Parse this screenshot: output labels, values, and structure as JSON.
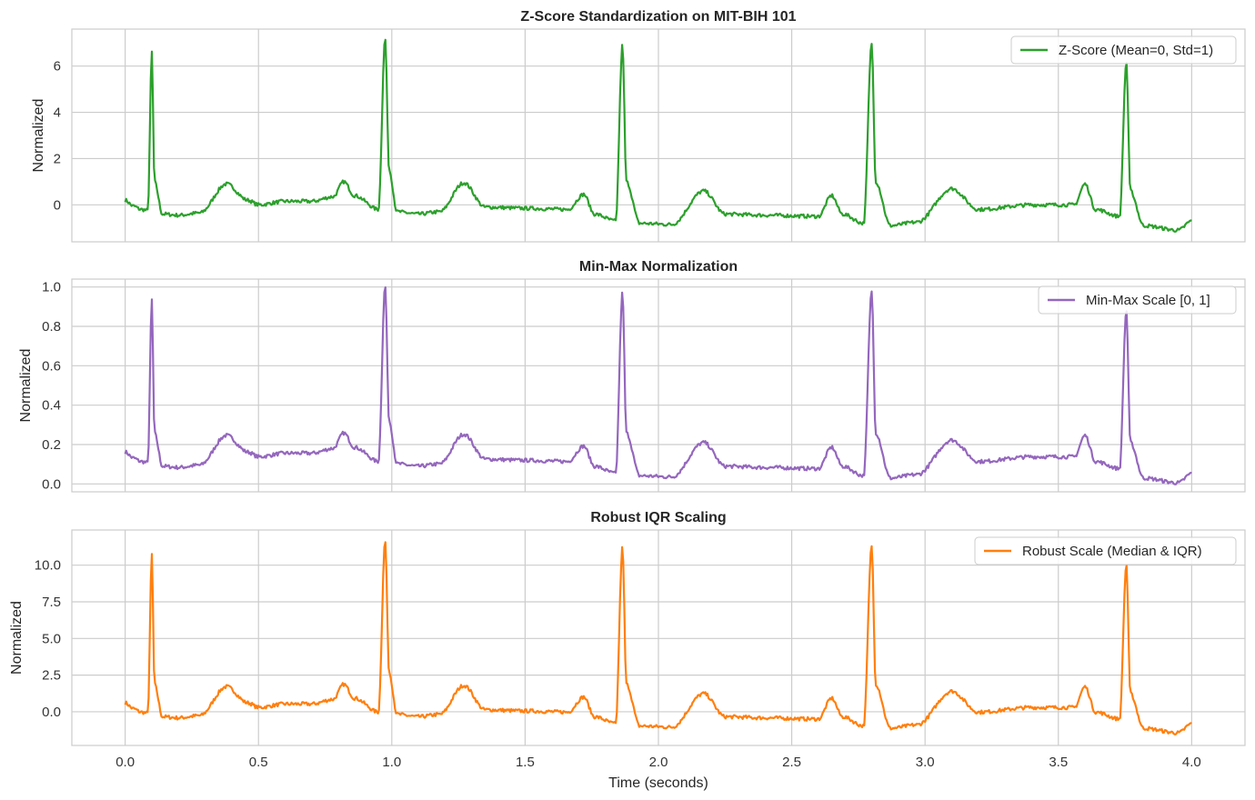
{
  "chart_data": [
    {
      "type": "line",
      "title": "Z-Score Standardization on MIT-BIH 101",
      "ylabel": "Normalized",
      "xlabel": "",
      "color": "#2ca02c",
      "ylim": [
        -1.6,
        7.6
      ],
      "yticks": [
        0,
        2,
        4,
        6
      ],
      "ytick_labels": [
        "0",
        "2",
        "4",
        "6"
      ],
      "baseline": 0.1,
      "scale": 1.0,
      "legend": "top-right",
      "series": [
        {
          "name": "Z-Score (Mean=0, Std=1)"
        }
      ]
    },
    {
      "type": "line",
      "title": "Min-Max Normalization",
      "ylabel": "Normalized",
      "xlabel": "",
      "color": "#9467bd",
      "ylim": [
        -0.04,
        1.04
      ],
      "yticks": [
        0.0,
        0.2,
        0.4,
        0.6,
        0.8,
        1.0
      ],
      "ytick_labels": [
        "0.0",
        "0.2",
        "0.4",
        "0.6",
        "0.8",
        "1.0"
      ],
      "baseline": 0.15,
      "scale": 0.1205,
      "legend": "top-right",
      "series": [
        {
          "name": "Min-Max Scale [0, 1]"
        }
      ]
    },
    {
      "type": "line",
      "title": "Robust IQR Scaling",
      "ylabel": "Normalized",
      "xlabel": "Time (seconds)",
      "color": "#ff7f0e",
      "ylim": [
        -2.3,
        12.4
      ],
      "yticks": [
        0.0,
        2.5,
        5.0,
        7.5,
        10.0
      ],
      "ytick_labels": [
        "0.0",
        "2.5",
        "5.0",
        "7.5",
        "10.0"
      ],
      "baseline": 0.45,
      "scale": 1.58,
      "legend": "top-right",
      "series": [
        {
          "name": "Robust Scale (Median & IQR)"
        }
      ]
    }
  ],
  "x_axis": {
    "xlim": [
      -0.2,
      4.2
    ],
    "xticks": [
      0.0,
      0.5,
      1.0,
      1.5,
      2.0,
      2.5,
      3.0,
      3.5,
      4.0
    ],
    "xtick_labels": [
      "0.0",
      "0.5",
      "1.0",
      "1.5",
      "2.0",
      "2.5",
      "3.0",
      "3.5",
      "4.0"
    ]
  },
  "signal": {
    "points_z": [
      [
        0.0,
        0.2
      ],
      [
        0.03,
        -0.05
      ],
      [
        0.06,
        -0.2
      ],
      [
        0.085,
        -0.25
      ],
      [
        0.1,
        6.6
      ],
      [
        0.11,
        1.0
      ],
      [
        0.14,
        -0.4
      ],
      [
        0.2,
        -0.45
      ],
      [
        0.28,
        -0.35
      ],
      [
        0.38,
        0.9
      ],
      [
        0.46,
        0.2
      ],
      [
        0.5,
        0.0
      ],
      [
        0.6,
        0.15
      ],
      [
        0.7,
        0.15
      ],
      [
        0.78,
        0.35
      ],
      [
        0.82,
        1.0
      ],
      [
        0.86,
        0.4
      ],
      [
        0.95,
        -0.2
      ],
      [
        0.975,
        7.2
      ],
      [
        0.99,
        1.5
      ],
      [
        1.02,
        -0.3
      ],
      [
        1.1,
        -0.4
      ],
      [
        1.18,
        -0.3
      ],
      [
        1.27,
        0.95
      ],
      [
        1.35,
        -0.1
      ],
      [
        1.5,
        -0.15
      ],
      [
        1.66,
        -0.2
      ],
      [
        1.72,
        0.45
      ],
      [
        1.76,
        -0.4
      ],
      [
        1.84,
        -0.7
      ],
      [
        1.865,
        6.9
      ],
      [
        1.88,
        1.0
      ],
      [
        1.93,
        -0.8
      ],
      [
        2.05,
        -0.85
      ],
      [
        2.17,
        0.6
      ],
      [
        2.25,
        -0.4
      ],
      [
        2.4,
        -0.45
      ],
      [
        2.6,
        -0.5
      ],
      [
        2.65,
        0.4
      ],
      [
        2.69,
        -0.4
      ],
      [
        2.77,
        -0.8
      ],
      [
        2.8,
        7.0
      ],
      [
        2.815,
        1.0
      ],
      [
        2.87,
        -0.9
      ],
      [
        2.97,
        -0.75
      ],
      [
        3.1,
        0.7
      ],
      [
        3.2,
        -0.2
      ],
      [
        3.4,
        0.0
      ],
      [
        3.56,
        0.0
      ],
      [
        3.6,
        0.9
      ],
      [
        3.64,
        -0.2
      ],
      [
        3.73,
        -0.5
      ],
      [
        3.755,
        6.2
      ],
      [
        3.77,
        0.6
      ],
      [
        3.82,
        -0.9
      ],
      [
        3.95,
        -1.1
      ],
      [
        4.0,
        -0.7
      ]
    ]
  }
}
